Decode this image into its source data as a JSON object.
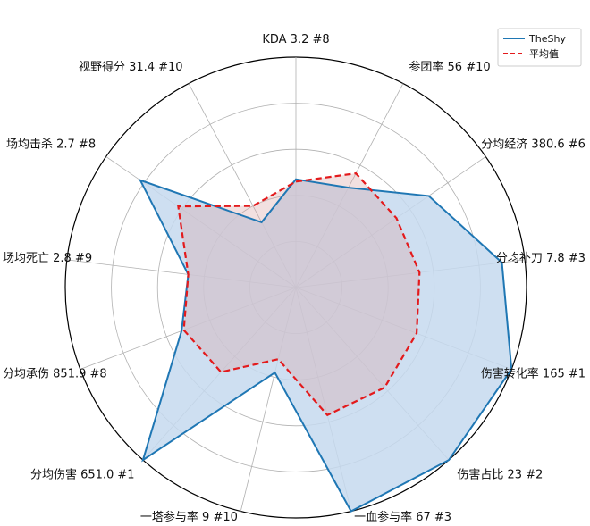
{
  "chart_data": {
    "type": "radar",
    "axes": [
      {
        "label": "KDA 3.2 #8"
      },
      {
        "label": "参团率 56 #10"
      },
      {
        "label": "分均经济 380.6 #6"
      },
      {
        "label": "分均补刀 7.8 #3"
      },
      {
        "label": "伤害转化率 165 #1"
      },
      {
        "label": "伤害占比 23 #2"
      },
      {
        "label": "一血参与率 67 #3"
      },
      {
        "label": "一塔参与率 9 #10"
      },
      {
        "label": "分均伤害 651.0 #1"
      },
      {
        "label": "分均承伤 851.9 #8"
      },
      {
        "label": "场均死亡 2.8 #9"
      },
      {
        "label": "场均击杀 2.7 #8"
      },
      {
        "label": "视野得分 31.4 #10"
      }
    ],
    "rlim": [
      0,
      1
    ],
    "rings": [
      0.2,
      0.4,
      0.6,
      0.8,
      1.0
    ],
    "grid": true,
    "legend_position": "top-right",
    "series": [
      {
        "name": "TheShy",
        "color": "#1f77b4",
        "fill": "#c6d9ee",
        "line_style": "solid",
        "values": [
          0.47,
          0.49,
          0.7,
          0.9,
          1.0,
          1.0,
          1.0,
          0.38,
          1.0,
          0.53,
          0.47,
          0.82,
          0.32
        ]
      },
      {
        "name": "平均值",
        "color": "#e31a1c",
        "line_style": "dashed",
        "values": [
          0.46,
          0.56,
          0.53,
          0.54,
          0.56,
          0.58,
          0.57,
          0.32,
          0.49,
          0.52,
          0.47,
          0.62,
          0.4
        ]
      }
    ]
  }
}
